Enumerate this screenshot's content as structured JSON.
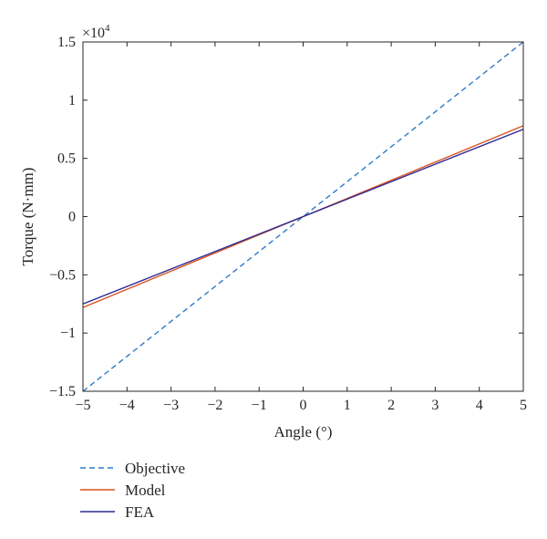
{
  "chart_data": {
    "type": "line",
    "xlabel": "Angle (°)",
    "ylabel": "Torque (N·mm)",
    "y_multiplier": "×10",
    "y_multiplier_exponent": "4",
    "xlim": [
      -5,
      5
    ],
    "ylim": [
      -15000,
      15000
    ],
    "x_ticks": [
      -5,
      -4,
      -3,
      -2,
      -1,
      0,
      1,
      2,
      3,
      4,
      5
    ],
    "x_tick_labels": [
      "−5",
      "−4",
      "−3",
      "−2",
      "−1",
      "0",
      "1",
      "2",
      "3",
      "4",
      "5"
    ],
    "y_ticks": [
      -15000,
      -10000,
      -5000,
      0,
      5000,
      10000,
      15000
    ],
    "y_tick_labels": [
      "−1.5",
      "−1",
      "−0.5",
      "0",
      "0.5",
      "1",
      "1.5"
    ],
    "grid": false,
    "legend_position": "below-left",
    "series": [
      {
        "name": "Objective",
        "x": [
          -5,
          5
        ],
        "y": [
          -15000,
          15000
        ],
        "color": "#2f7bc7",
        "dash": true
      },
      {
        "name": "Model",
        "x": [
          -5,
          5
        ],
        "y": [
          -7800,
          7800
        ],
        "color": "#d9541f",
        "dash": false
      },
      {
        "name": "FEA",
        "x": [
          -5,
          5
        ],
        "y": [
          -7500,
          7500
        ],
        "color": "#2e2a93",
        "dash": false
      }
    ]
  }
}
